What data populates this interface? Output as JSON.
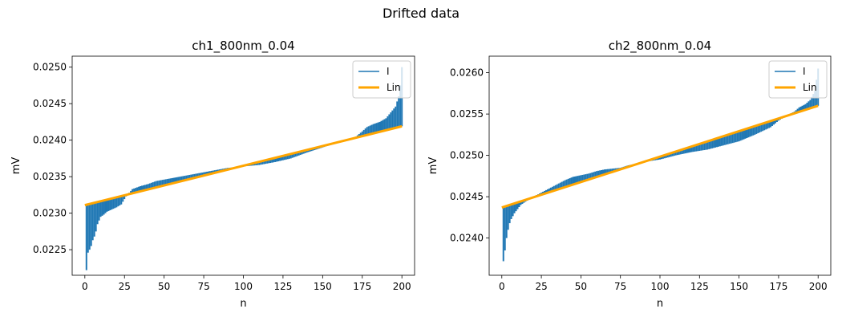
{
  "figure": {
    "suptitle": "Drifted data"
  },
  "chart_data": [
    {
      "type": "bar",
      "title": "ch1_800nm_0.04",
      "xlabel": "n",
      "ylabel": "mV",
      "xlim": [
        -8,
        208
      ],
      "ylim": [
        0.02215,
        0.02515
      ],
      "xticks": [
        0,
        25,
        50,
        75,
        100,
        125,
        150,
        175,
        200
      ],
      "yticks": [
        "0.0225",
        "0.0230",
        "0.0235",
        "0.0240",
        "0.0245",
        "0.0250"
      ],
      "ytick_values": [
        0.0225,
        0.023,
        0.0235,
        0.024,
        0.0245,
        0.025
      ],
      "legend": {
        "location": "upper right",
        "entries": [
          "I",
          "Lin"
        ]
      },
      "series": [
        {
          "name": "I",
          "kind": "bars from line",
          "color": "#1f77b4",
          "points": [
            [
              1,
              0.02222
            ],
            [
              2,
              0.02246
            ],
            [
              3,
              0.0225
            ],
            [
              4,
              0.02255
            ],
            [
              5,
              0.02263
            ],
            [
              6,
              0.02268
            ],
            [
              7,
              0.02275
            ],
            [
              8,
              0.02285
            ],
            [
              9,
              0.0229
            ],
            [
              10,
              0.02295
            ],
            [
              12,
              0.02298
            ],
            [
              14,
              0.02302
            ],
            [
              17,
              0.02305
            ],
            [
              20,
              0.02308
            ],
            [
              23,
              0.02312
            ],
            [
              26,
              0.02323
            ],
            [
              30,
              0.02333
            ],
            [
              35,
              0.02337
            ],
            [
              40,
              0.0234
            ],
            [
              45,
              0.02344
            ],
            [
              50,
              0.02346
            ],
            [
              55,
              0.02348
            ],
            [
              60,
              0.0235
            ],
            [
              65,
              0.02352
            ],
            [
              70,
              0.02354
            ],
            [
              75,
              0.02356
            ],
            [
              80,
              0.02358
            ],
            [
              85,
              0.0236
            ],
            [
              90,
              0.02362
            ],
            [
              100,
              0.02364
            ],
            [
              110,
              0.02366
            ],
            [
              120,
              0.0237
            ],
            [
              130,
              0.02375
            ],
            [
              140,
              0.02383
            ],
            [
              150,
              0.0239
            ],
            [
              160,
              0.02397
            ],
            [
              170,
              0.02403
            ],
            [
              175,
              0.02412
            ],
            [
              178,
              0.02418
            ],
            [
              182,
              0.02422
            ],
            [
              186,
              0.02425
            ],
            [
              190,
              0.0243
            ],
            [
              193,
              0.02438
            ],
            [
              196,
              0.02446
            ],
            [
              198,
              0.0246
            ],
            [
              199,
              0.02475
            ],
            [
              200,
              0.025
            ]
          ]
        },
        {
          "name": "Lin",
          "kind": "line",
          "color": "#ffa500",
          "points": [
            [
              0,
              0.02311
            ],
            [
              200,
              0.02419
            ]
          ]
        }
      ]
    },
    {
      "type": "bar",
      "title": "ch2_800nm_0.04",
      "xlabel": "n",
      "ylabel": "mV",
      "xlim": [
        -8,
        208
      ],
      "ylim": [
        0.02355,
        0.0262
      ],
      "xticks": [
        0,
        25,
        50,
        75,
        100,
        125,
        150,
        175,
        200
      ],
      "yticks": [
        "0.0240",
        "0.0245",
        "0.0250",
        "0.0255",
        "0.0260"
      ],
      "ytick_values": [
        0.024,
        0.0245,
        0.025,
        0.0255,
        0.026
      ],
      "legend": {
        "location": "upper right",
        "entries": [
          "I",
          "Lin"
        ]
      },
      "series": [
        {
          "name": "I",
          "kind": "bars from line",
          "color": "#1f77b4",
          "points": [
            [
              1,
              0.02372
            ],
            [
              2,
              0.02385
            ],
            [
              3,
              0.024
            ],
            [
              4,
              0.0241
            ],
            [
              5,
              0.02418
            ],
            [
              6,
              0.02423
            ],
            [
              8,
              0.0243
            ],
            [
              10,
              0.02435
            ],
            [
              12,
              0.0244
            ],
            [
              15,
              0.02444
            ],
            [
              20,
              0.0245
            ],
            [
              25,
              0.02455
            ],
            [
              30,
              0.0246
            ],
            [
              35,
              0.02465
            ],
            [
              40,
              0.0247
            ],
            [
              45,
              0.02474
            ],
            [
              50,
              0.02476
            ],
            [
              55,
              0.02478
            ],
            [
              60,
              0.02481
            ],
            [
              65,
              0.02483
            ],
            [
              70,
              0.02484
            ],
            [
              75,
              0.02485
            ],
            [
              80,
              0.02488
            ],
            [
              85,
              0.0249
            ],
            [
              90,
              0.02492
            ],
            [
              100,
              0.02495
            ],
            [
              110,
              0.025
            ],
            [
              120,
              0.02504
            ],
            [
              130,
              0.02507
            ],
            [
              140,
              0.02512
            ],
            [
              150,
              0.02517
            ],
            [
              160,
              0.02525
            ],
            [
              170,
              0.02534
            ],
            [
              175,
              0.02542
            ],
            [
              180,
              0.02548
            ],
            [
              185,
              0.02553
            ],
            [
              188,
              0.02558
            ],
            [
              192,
              0.02562
            ],
            [
              195,
              0.02567
            ],
            [
              198,
              0.02578
            ],
            [
              200,
              0.02605
            ]
          ]
        },
        {
          "name": "Lin",
          "kind": "line",
          "color": "#ffa500",
          "points": [
            [
              0,
              0.02437
            ],
            [
              200,
              0.0256
            ]
          ]
        }
      ]
    }
  ]
}
